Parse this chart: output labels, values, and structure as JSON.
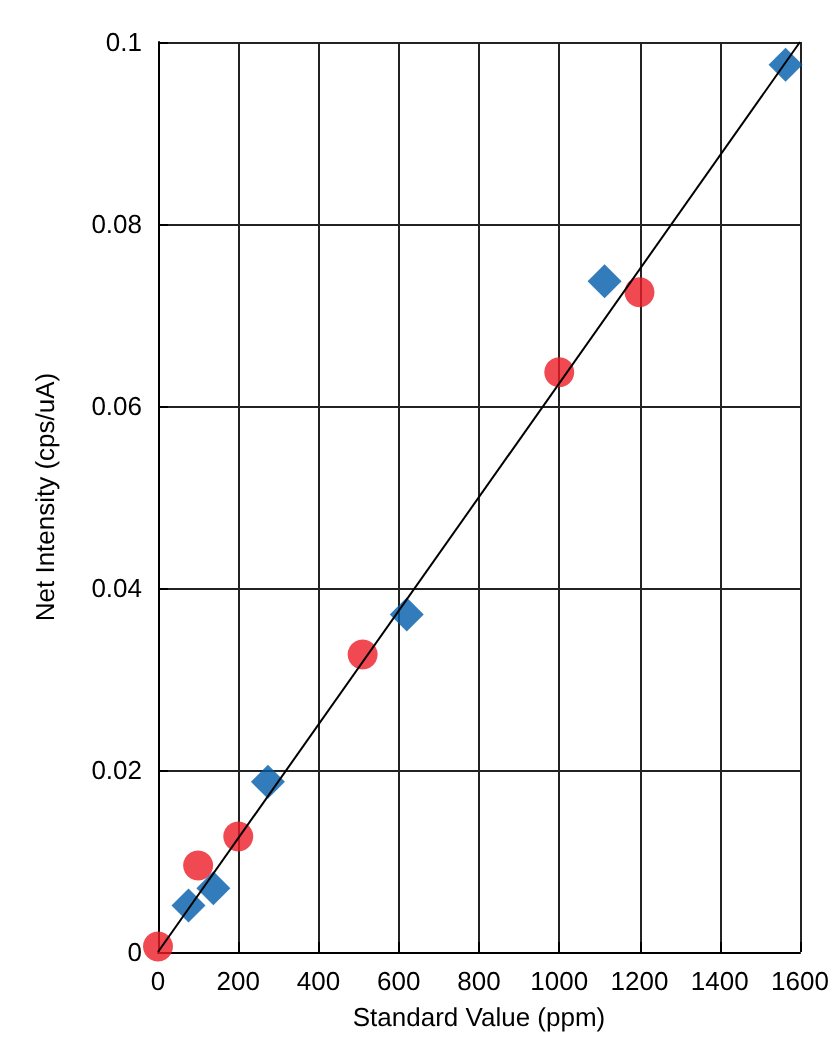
{
  "chart_data": {
    "type": "scatter",
    "xlabel": "Standard Value (ppm)",
    "ylabel": "Net Intensity (cps/uA)",
    "xlim": [
      0,
      1600
    ],
    "xticks": [
      0,
      200,
      400,
      600,
      800,
      1000,
      1200,
      1400,
      1600
    ],
    "ylim": [
      0,
      0.1
    ],
    "yticks": [
      0,
      0.02,
      0.04,
      0.06,
      0.08,
      0.1
    ],
    "grid": true,
    "series": [
      {
        "type": "line",
        "color": "#000000",
        "marker": "none",
        "line_style": "solid",
        "x": [
          0,
          1600
        ],
        "values": [
          0,
          0.1
        ]
      },
      {
        "color": "#ee1c25",
        "marker": "circle",
        "x": [
          0,
          100,
          200,
          510,
          1000,
          1200
        ],
        "values": [
          0.0006,
          0.0095,
          0.0127,
          0.0327,
          0.0637,
          0.0725
        ]
      },
      {
        "color": "#005bab",
        "marker": "diamond",
        "x": [
          76,
          138,
          274,
          620,
          1113,
          1564
        ],
        "values": [
          0.0051,
          0.007,
          0.0187,
          0.0371,
          0.0737,
          0.0975
        ]
      }
    ]
  }
}
